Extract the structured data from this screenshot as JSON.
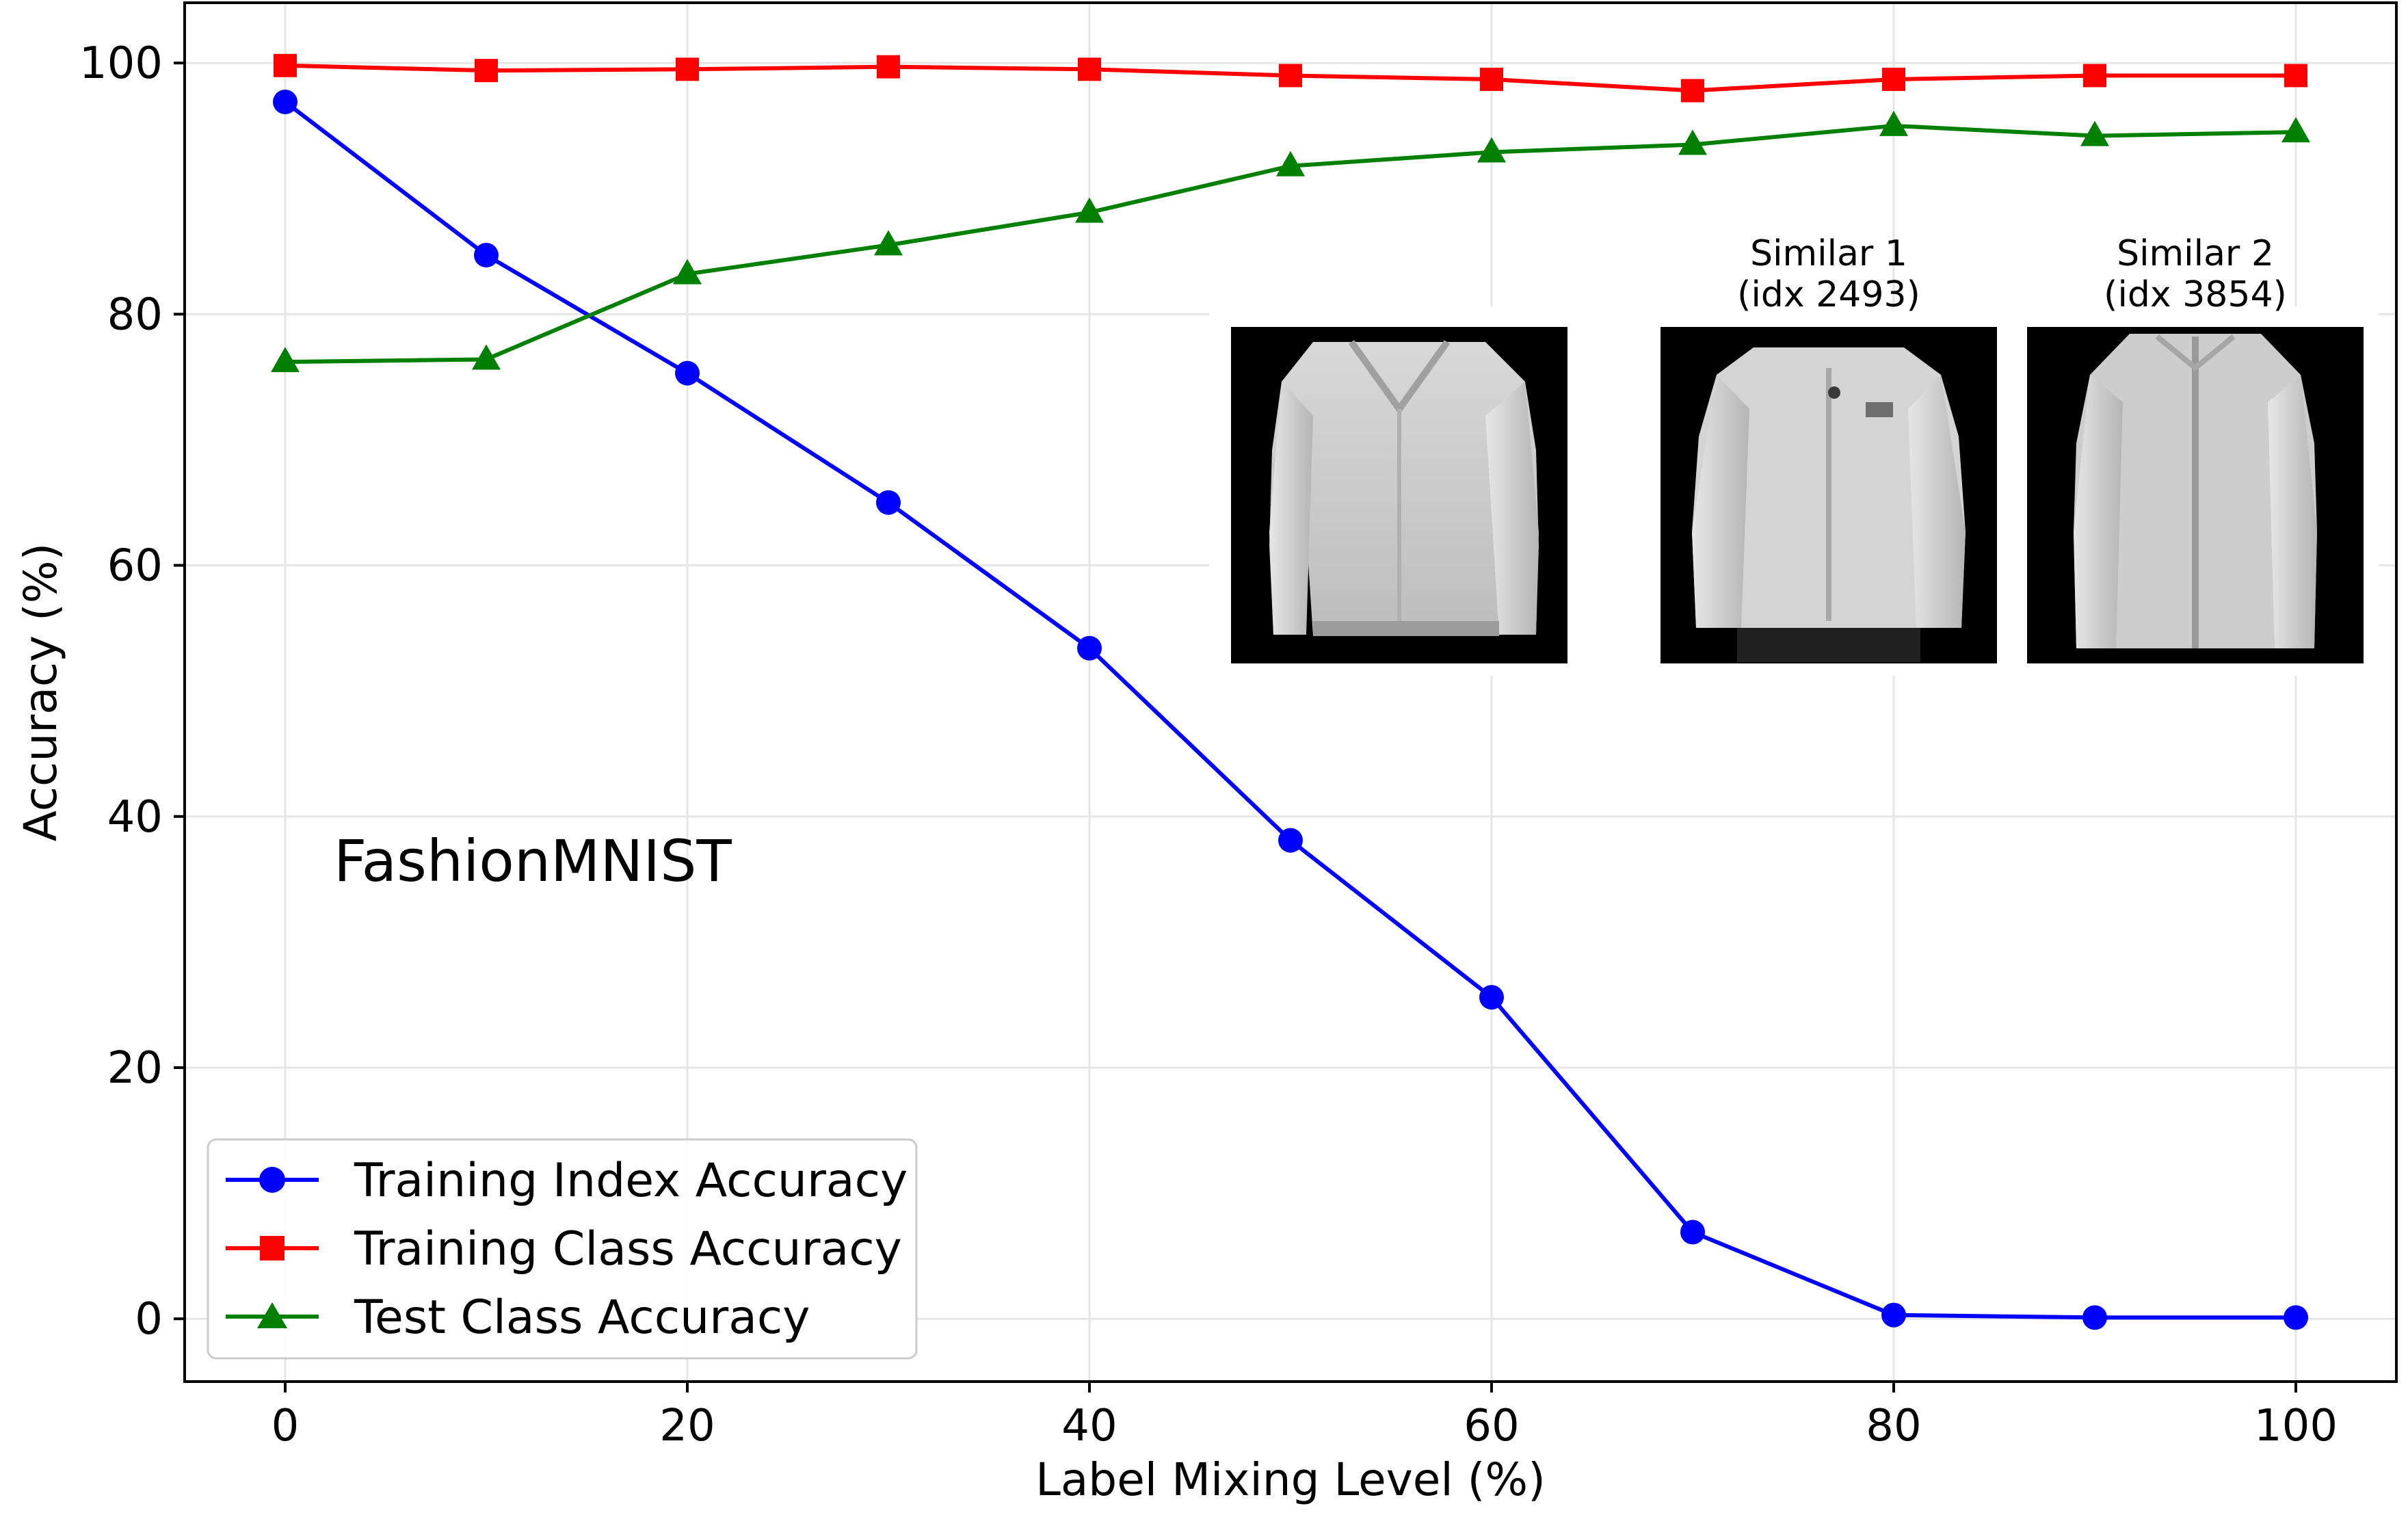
{
  "chart_data": {
    "type": "line",
    "title": "",
    "xlabel": "Label Mixing Level (%)",
    "ylabel": "Accuracy (%)",
    "x": [
      0,
      10,
      20,
      30,
      40,
      50,
      60,
      70,
      80,
      90,
      100
    ],
    "xlim": [
      -5,
      105
    ],
    "ylim": [
      -5,
      104.8
    ],
    "xticks": [
      0,
      20,
      40,
      60,
      80,
      100
    ],
    "yticks": [
      0,
      20,
      40,
      60,
      80,
      100
    ],
    "grid": true,
    "legend_position": "bottom-left",
    "series": [
      {
        "name": "Training Index Accuracy",
        "color": "#0000ff",
        "marker": "circle",
        "values": [
          96.9,
          84.7,
          75.3,
          65.0,
          53.4,
          38.1,
          25.6,
          6.9,
          0.3,
          0.1,
          0.1
        ]
      },
      {
        "name": "Training Class Accuracy",
        "color": "#ff0000",
        "marker": "square",
        "values": [
          99.8,
          99.4,
          99.5,
          99.7,
          99.5,
          99.0,
          98.7,
          97.8,
          98.7,
          99.0,
          99.0
        ]
      },
      {
        "name": "Test Class Accuracy",
        "color": "#008000",
        "marker": "triangle",
        "values": [
          76.2,
          76.4,
          83.2,
          85.5,
          88.1,
          91.8,
          92.9,
          93.5,
          95.0,
          94.2,
          94.5
        ]
      }
    ],
    "annotations": [
      {
        "text": "FashionMNIST"
      }
    ],
    "insets": [
      {
        "title_line1": "",
        "title_line2": "",
        "image": "jacket-grayscale-query"
      },
      {
        "title_line1": "Similar 1",
        "title_line2": "(idx 2493)",
        "image": "jacket-grayscale-similar-1"
      },
      {
        "title_line1": "Similar 2",
        "title_line2": "(idx 3854)",
        "image": "jacket-grayscale-similar-2"
      }
    ]
  }
}
